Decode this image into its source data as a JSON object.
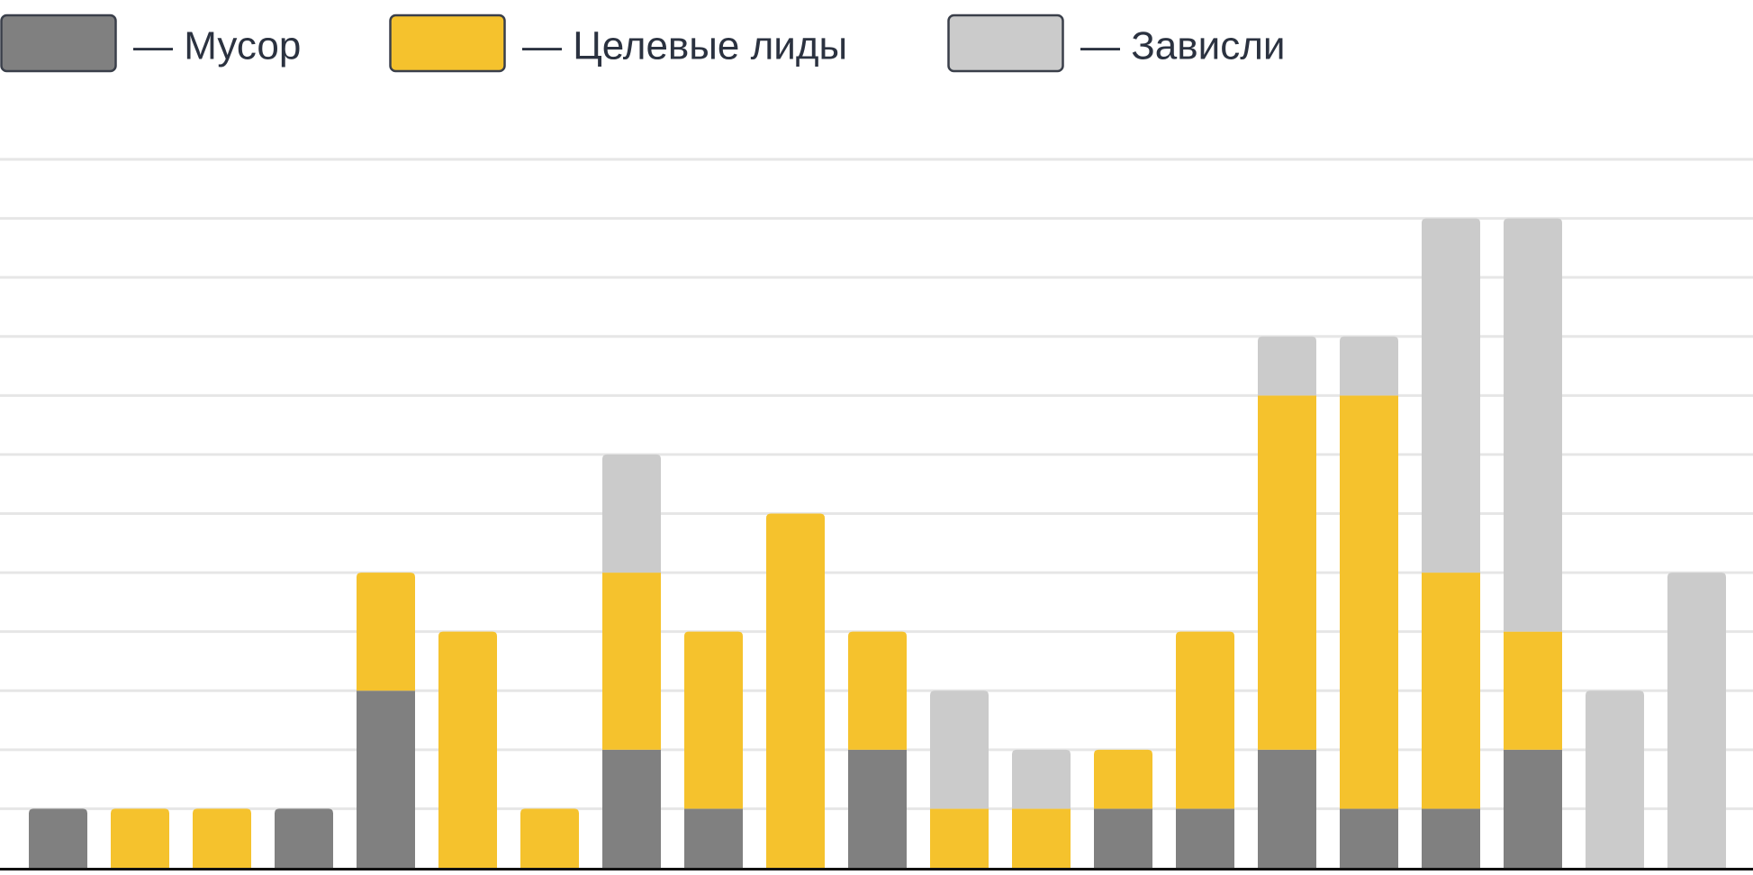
{
  "chart_data": {
    "type": "stacked_bar",
    "categories": [
      null,
      null,
      null,
      null,
      null,
      null,
      null,
      null,
      null,
      null,
      null,
      null,
      null,
      null,
      null,
      null,
      null,
      null,
      null,
      null,
      null
    ],
    "series": [
      {
        "name": "— Мусор",
        "color": "#808080",
        "values": [
          1,
          0,
          0,
          1,
          3,
          0,
          0,
          2,
          1,
          0,
          2,
          0,
          0,
          1,
          1,
          2,
          1,
          1,
          2,
          0,
          0
        ]
      },
      {
        "name": "— Целевые лиды",
        "color": "#f5c22d",
        "values": [
          0,
          1,
          1,
          0,
          2,
          4,
          1,
          3,
          3,
          6,
          2,
          1,
          1,
          1,
          3,
          6,
          7,
          4,
          2,
          0,
          0
        ]
      },
      {
        "name": "— Зависли",
        "color": "#cbcbcb",
        "values": [
          0,
          0,
          0,
          0,
          0,
          0,
          0,
          2,
          0,
          0,
          0,
          2,
          1,
          0,
          0,
          1,
          1,
          6,
          7,
          3,
          5
        ]
      }
    ],
    "ylim": [
      0,
      12
    ],
    "yticks": [
      0,
      1,
      2,
      3,
      4,
      5,
      6,
      7,
      8,
      9,
      10,
      11,
      12
    ],
    "grid": true,
    "legend": "top"
  }
}
